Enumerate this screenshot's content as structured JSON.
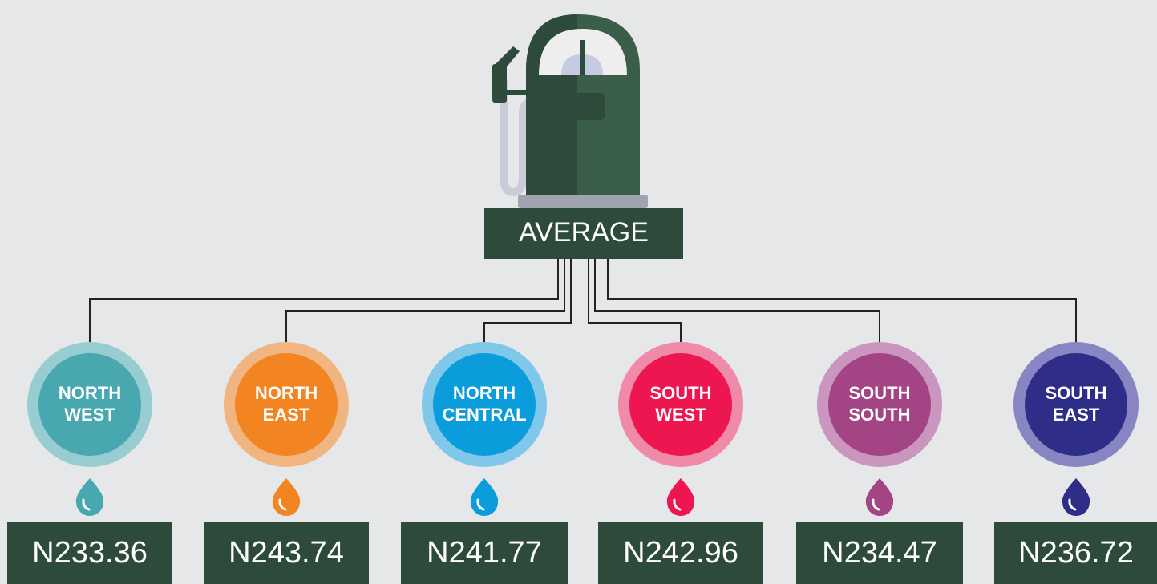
{
  "header": {
    "label": "AVERAGE"
  },
  "nodes": [
    {
      "lines": [
        "NORTH",
        "WEST"
      ],
      "price": "N233.36",
      "color": "#49a7af",
      "ring": "#97cdd1"
    },
    {
      "lines": [
        "NORTH",
        "EAST"
      ],
      "price": "N243.74",
      "color": "#f28421",
      "ring": "#f1b582"
    },
    {
      "lines": [
        "NORTH",
        "CENTRAL"
      ],
      "price": "N241.77",
      "color": "#0b9cdb",
      "ring": "#7fc8ea"
    },
    {
      "lines": [
        "SOUTH",
        "WEST"
      ],
      "price": "N242.96",
      "color": "#ed1651",
      "ring": "#ef8ba8"
    },
    {
      "lines": [
        "SOUTH",
        "SOUTH"
      ],
      "price": "N234.47",
      "color": "#a34584",
      "ring": "#ca95bf"
    },
    {
      "lines": [
        "SOUTH",
        "EAST"
      ],
      "price": "N236.72",
      "color": "#2e2d88",
      "ring": "#8786c2"
    }
  ]
}
